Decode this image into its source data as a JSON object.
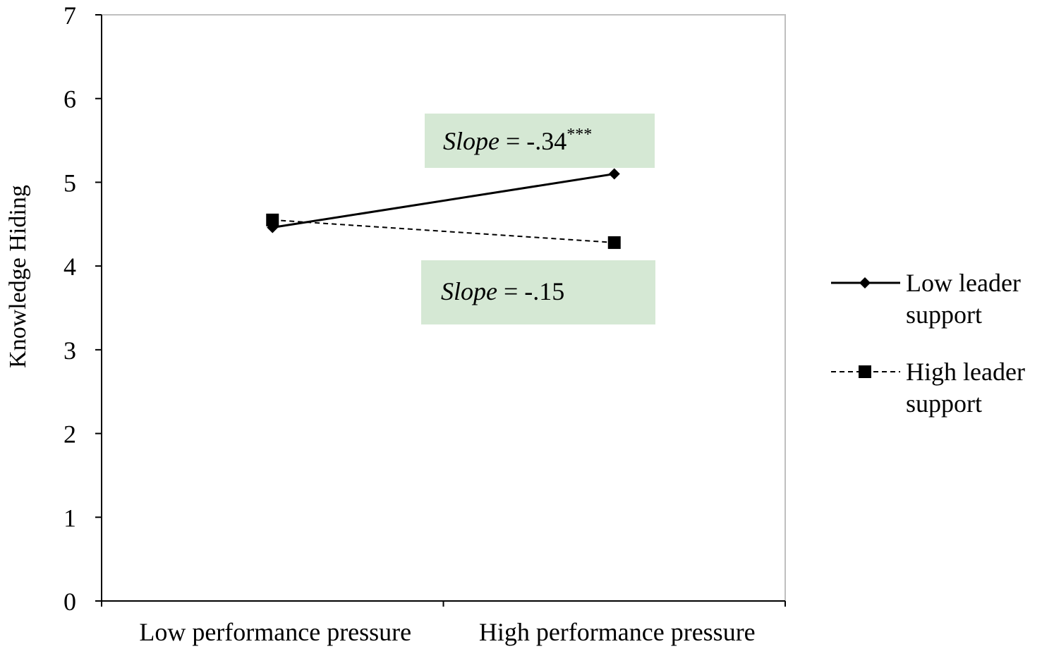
{
  "chart_data": {
    "type": "line",
    "title": "",
    "xlabel": "",
    "ylabel": "Knowledge Hiding",
    "categories": [
      "Low performance pressure",
      "High performance pressure"
    ],
    "ylim": [
      0,
      7
    ],
    "yticks": [
      0,
      1,
      2,
      3,
      4,
      5,
      6,
      7
    ],
    "grid": false,
    "legend_position": "right",
    "series": [
      {
        "name_line1": "Low leader",
        "name_line2": "support",
        "values": [
          4.46,
          5.1
        ],
        "line_style": "solid",
        "marker": "diamond",
        "color": "#000000"
      },
      {
        "name_line1": "High leader",
        "name_line2": "support",
        "values": [
          4.55,
          4.28
        ],
        "line_style": "dashed",
        "marker": "square",
        "color": "#000000"
      }
    ],
    "annotations": [
      {
        "label": "Slope",
        "value": " = -.34",
        "superscript": "***",
        "background": "#d5e8d4"
      },
      {
        "label": "Slope",
        "value": " = -.15",
        "superscript": "",
        "background": "#d5e8d4"
      }
    ]
  }
}
